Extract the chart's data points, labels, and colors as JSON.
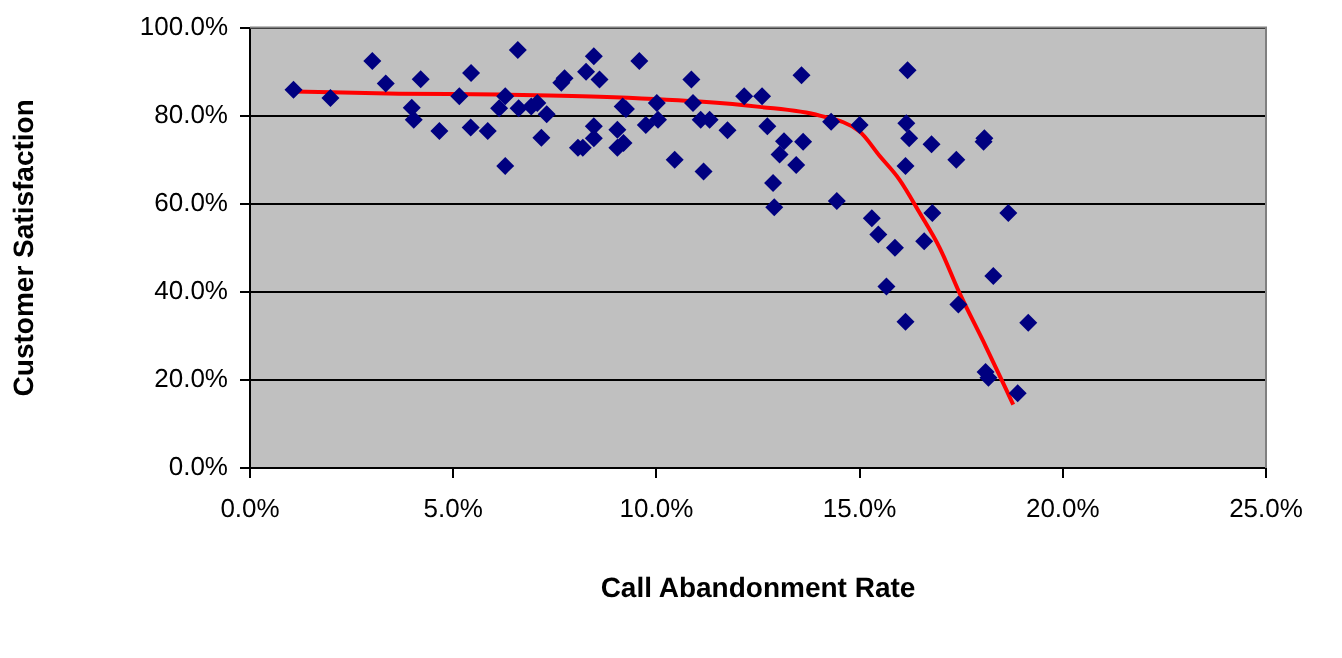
{
  "chart_data": {
    "type": "scatter",
    "xlabel": "Call Abandonment Rate",
    "ylabel": "Customer Satisfaction",
    "xlim": [
      0,
      25
    ],
    "xticks": [
      {
        "value": 0,
        "label": "0.0%"
      },
      {
        "value": 5,
        "label": "5.0%"
      },
      {
        "value": 10,
        "label": "10.0%"
      },
      {
        "value": 15,
        "label": "15.0%"
      },
      {
        "value": 20,
        "label": "20.0%"
      },
      {
        "value": 25,
        "label": "25.0%"
      }
    ],
    "ylim": [
      0,
      100
    ],
    "yticks": [
      {
        "value": 0,
        "label": "0.0%"
      },
      {
        "value": 20,
        "label": "20.0%"
      },
      {
        "value": 40,
        "label": "40.0%"
      },
      {
        "value": 60,
        "label": "60.0%"
      },
      {
        "value": 80,
        "label": "80.0%"
      },
      {
        "value": 100,
        "label": "100.0%"
      }
    ],
    "grid": "y",
    "legend": false,
    "series": [
      {
        "marker": "diamond",
        "color": "#000080",
        "x": [
          1.07,
          1.98,
          3.01,
          3.34,
          3.98,
          4.03,
          4.2,
          4.66,
          5.15,
          5.43,
          5.44,
          5.85,
          6.13,
          6.28,
          6.28,
          6.59,
          6.61,
          6.92,
          7.07,
          7.17,
          7.3,
          7.66,
          7.74,
          8.07,
          8.27,
          8.46,
          8.6,
          8.19,
          8.46,
          8.46,
          9.04,
          9.04,
          9.19,
          9.17,
          9.25,
          9.58,
          9.74,
          10.01,
          10.04,
          10.45,
          10.86,
          10.9,
          11.09,
          11.31,
          11.16,
          11.75,
          12.16,
          12.6,
          12.73,
          13.14,
          13.03,
          13.57,
          13.61,
          13.44,
          12.87,
          12.9,
          14.3,
          14.44,
          15.0,
          15.3,
          15.46,
          15.87,
          15.66,
          16.13,
          16.18,
          16.15,
          16.22,
          16.13,
          16.59,
          16.79,
          16.77,
          17.38,
          17.43,
          18.07,
          18.05,
          18.66,
          18.29,
          19.15,
          18.17,
          18.1,
          18.89
        ],
        "values": [
          85.9,
          84.0,
          92.4,
          87.3,
          81.8,
          79.1,
          88.3,
          76.5,
          84.4,
          77.3,
          89.7,
          76.5,
          81.7,
          84.4,
          68.6,
          94.9,
          81.7,
          82.1,
          82.9,
          75.0,
          80.3,
          87.5,
          88.5,
          72.7,
          90.0,
          93.5,
          88.2,
          72.7,
          77.6,
          74.9,
          76.8,
          72.7,
          73.8,
          82.1,
          81.5,
          92.4,
          77.9,
          82.9,
          79.1,
          70.0,
          88.2,
          82.9,
          79.1,
          79.1,
          67.3,
          76.7,
          84.4,
          84.4,
          77.6,
          74.2,
          71.2,
          89.2,
          74.1,
          68.8,
          64.7,
          59.2,
          78.6,
          60.6,
          77.9,
          56.7,
          53.0,
          50.0,
          41.2,
          33.2,
          90.3,
          78.3,
          74.9,
          68.6,
          51.5,
          57.9,
          73.5,
          70.0,
          37.1,
          74.9,
          74.1,
          57.9,
          43.6,
          33.0,
          20.5,
          21.8,
          17.0
        ]
      },
      {
        "type": "line",
        "marker": "none",
        "color": "#ff0000",
        "x": [
          1.07,
          3.67,
          6.13,
          8.6,
          11.06,
          12.54,
          14.02,
          15.0,
          15.49,
          15.98,
          16.48,
          16.97,
          17.46,
          18.1,
          18.78
        ],
        "values": [
          85.5,
          85.0,
          84.8,
          84.3,
          83.2,
          82.0,
          80.0,
          76.4,
          70.9,
          65.5,
          57.9,
          50.0,
          39.7,
          27.7,
          14.4
        ]
      }
    ]
  }
}
